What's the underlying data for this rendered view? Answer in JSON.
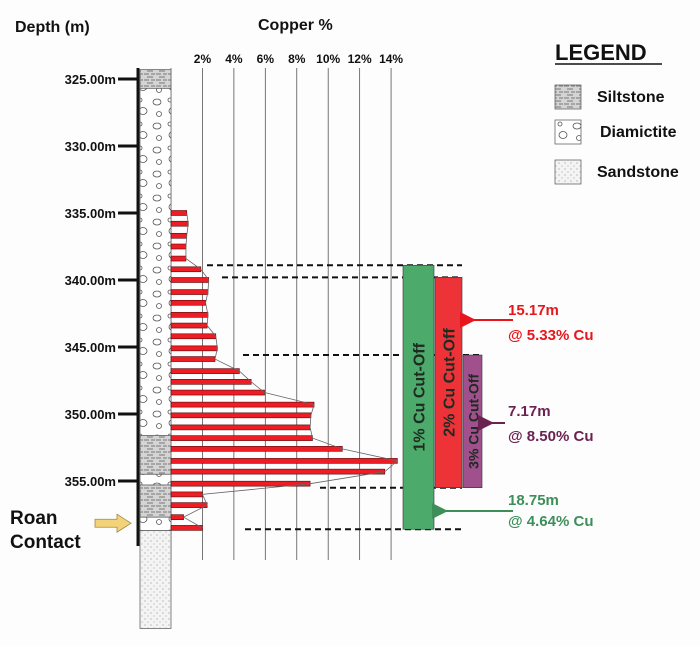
{
  "chart_data": {
    "type": "bar",
    "orientation": "horizontal",
    "title": "Copper %",
    "ylabel": "Depth (m)",
    "xlabel": "Copper %",
    "xlim": [
      0,
      14
    ],
    "ylim": [
      324.3,
      366.0
    ],
    "x_ticks": [
      {
        "value": 2,
        "label": "2%"
      },
      {
        "value": 4,
        "label": "4%"
      },
      {
        "value": 6,
        "label": "6%"
      },
      {
        "value": 8,
        "label": "8%"
      },
      {
        "value": 10,
        "label": "10%"
      },
      {
        "value": 12,
        "label": "12%"
      },
      {
        "value": 14,
        "label": "14%"
      }
    ],
    "y_ticks": [
      {
        "value": 325,
        "label": "325.00m"
      },
      {
        "value": 330,
        "label": "330.00m"
      },
      {
        "value": 335,
        "label": "335.00m"
      },
      {
        "value": 340,
        "label": "340.00m"
      },
      {
        "value": 345,
        "label": "345.00m"
      },
      {
        "value": 350,
        "label": "350.00m"
      },
      {
        "value": 355,
        "label": "355.00m"
      }
    ],
    "grid": "vertical",
    "bar_color": "#ee1c25",
    "depths": [
      335.0,
      335.8,
      336.7,
      337.5,
      338.4,
      339.2,
      340.0,
      340.9,
      341.7,
      342.6,
      343.4,
      344.2,
      345.1,
      345.9,
      346.8,
      347.6,
      348.4,
      349.3,
      350.1,
      351.0,
      351.8,
      352.6,
      353.5,
      354.3,
      355.2,
      356.0,
      356.8,
      357.7,
      358.5
    ],
    "values": [
      1.0,
      1.1,
      1.0,
      0.95,
      0.95,
      1.9,
      2.4,
      2.35,
      2.2,
      2.35,
      2.3,
      2.85,
      2.95,
      2.8,
      4.35,
      5.1,
      5.95,
      9.1,
      8.9,
      8.85,
      9.0,
      10.9,
      14.4,
      13.6,
      8.85,
      2.0,
      2.3,
      0.8,
      2.0
    ],
    "lithology": [
      {
        "rock": "siltstone",
        "from": 324.3,
        "to": 325.7
      },
      {
        "rock": "diamictite",
        "from": 325.7,
        "to": 351.6
      },
      {
        "rock": "siltstone",
        "from": 351.6,
        "to": 354.5
      },
      {
        "rock": "diamictite",
        "from": 354.5,
        "to": 355.3
      },
      {
        "rock": "siltstone",
        "from": 355.3,
        "to": 357.7
      },
      {
        "rock": "diamictite",
        "from": 357.7,
        "to": 358.7
      },
      {
        "rock": "sandstone",
        "from": 358.7,
        "to": 366.0
      }
    ],
    "cutoffs": [
      {
        "label": "1% Cu Cut-Off",
        "from": 338.9,
        "to": 358.6,
        "color": "#4caa6a",
        "summary_length": "18.75m",
        "summary_grade": "@ 4.64% Cu",
        "text_color": "#3d8f5a"
      },
      {
        "label": "2% Cu Cut-Off",
        "from": 339.8,
        "to": 355.5,
        "color": "#ee3338",
        "summary_length": "15.17m",
        "summary_grade": "@ 5.33% Cu",
        "text_color": "#e8161c"
      },
      {
        "label": "3% Cu Cut-Off",
        "from": 345.6,
        "to": 355.5,
        "color": "#a0508c",
        "summary_length": "7.17m",
        "summary_grade": "@ 8.50% Cu",
        "text_color": "#6a2350"
      }
    ],
    "annotation": {
      "line1": "Roan",
      "line2": "Contact",
      "depth": 358.3
    },
    "legend": {
      "title": "LEGEND",
      "placement": "top-right",
      "items": [
        {
          "rock": "siltstone",
          "label": "Siltstone"
        },
        {
          "rock": "diamictite",
          "label": "Diamictite"
        },
        {
          "rock": "sandstone",
          "label": "Sandstone"
        }
      ]
    }
  }
}
